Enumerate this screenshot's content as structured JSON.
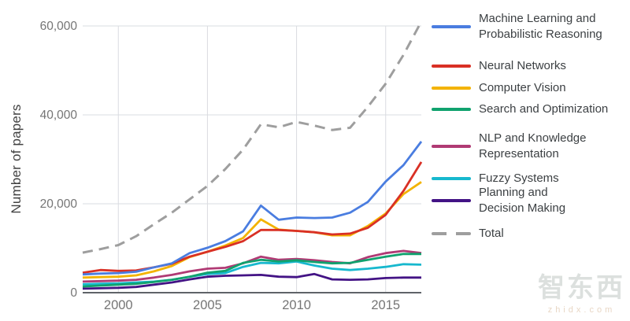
{
  "watermark": {
    "title": "智东西",
    "subtitle": "zhidx.com"
  },
  "chart_data": {
    "type": "line",
    "title": "",
    "xlabel": "",
    "ylabel": "Number of papers",
    "xlim": [
      1998,
      2017
    ],
    "ylim": [
      0,
      60000
    ],
    "grid": true,
    "legend_position": "right",
    "x": [
      1998,
      1999,
      2000,
      2001,
      2002,
      2003,
      2004,
      2005,
      2006,
      2007,
      2008,
      2009,
      2010,
      2011,
      2012,
      2013,
      2014,
      2015,
      2016,
      2017
    ],
    "x_ticks": [
      {
        "value": 2000,
        "label": "2000"
      },
      {
        "value": 2005,
        "label": "2005"
      },
      {
        "value": 2010,
        "label": "2010"
      },
      {
        "value": 2015,
        "label": "2015"
      }
    ],
    "y_ticks": [
      {
        "value": 0,
        "label": "0"
      },
      {
        "value": 20000,
        "label": "20,000"
      },
      {
        "value": 40000,
        "label": "40,000"
      },
      {
        "value": 60000,
        "label": "60,000"
      }
    ],
    "palette": {
      "grid_color": "#dadce0",
      "axis_line_color": "#5f6368",
      "tick_label_color": "#757575",
      "axis_title_color": "#424242",
      "legend_text_color": "#3c4043"
    },
    "series": [
      {
        "name": "Machine Learning and Probabilistic Reasoning",
        "label_lines": [
          "Machine Learning and",
          "Probabilistic Reasoning"
        ],
        "color": "#4a7de0",
        "style": "solid",
        "values": [
          4100,
          4300,
          4400,
          4700,
          5700,
          6600,
          8900,
          10100,
          11600,
          13800,
          19600,
          16400,
          16900,
          16800,
          16900,
          18000,
          20400,
          25000,
          28700,
          34000
        ]
      },
      {
        "name": "Neural Networks",
        "label_lines": [
          "Neural Networks"
        ],
        "color": "#d93025",
        "style": "solid",
        "values": [
          4500,
          5100,
          4900,
          5000,
          5700,
          6500,
          8100,
          9200,
          10300,
          11600,
          14100,
          14100,
          13900,
          13600,
          13100,
          13300,
          14600,
          17500,
          22900,
          29400
        ]
      },
      {
        "name": "Computer Vision",
        "label_lines": [
          "Computer Vision"
        ],
        "color": "#f3b300",
        "style": "solid",
        "values": [
          3400,
          3500,
          3600,
          3900,
          4800,
          6000,
          8000,
          9200,
          10600,
          12300,
          16500,
          14200,
          13900,
          13600,
          12900,
          12900,
          15000,
          17800,
          22200,
          24900
        ]
      },
      {
        "name": "Search and Optimization",
        "label_lines": [
          "Search and Optimization"
        ],
        "color": "#10a26e",
        "style": "solid",
        "values": [
          1400,
          1600,
          1800,
          2000,
          2400,
          2900,
          3600,
          4500,
          4900,
          6700,
          7400,
          7000,
          7300,
          6900,
          6600,
          6700,
          7400,
          8100,
          8700,
          8700
        ]
      },
      {
        "name": "NLP and Knowledge Representation",
        "label_lines": [
          "NLP and Knowledge",
          "Representation"
        ],
        "color": "#b03a74",
        "style": "solid",
        "values": [
          2500,
          2600,
          2700,
          2900,
          3400,
          4000,
          4800,
          5400,
          5600,
          6600,
          8100,
          7400,
          7600,
          7300,
          6900,
          6600,
          8000,
          8900,
          9400,
          8900
        ]
      },
      {
        "name": "Fuzzy Systems",
        "label_lines": [
          "Fuzzy Systems"
        ],
        "color": "#17b8ce",
        "style": "solid",
        "values": [
          1900,
          2000,
          2100,
          2300,
          2500,
          2900,
          3600,
          4200,
          4400,
          5800,
          6700,
          6600,
          7000,
          6100,
          5400,
          5100,
          5400,
          5800,
          6400,
          6300
        ]
      },
      {
        "name": "Planning and Decision Making",
        "label_lines": [
          "Planning and",
          "Decision Making"
        ],
        "color": "#431385",
        "style": "solid",
        "values": [
          900,
          1000,
          1100,
          1300,
          1800,
          2300,
          3000,
          3600,
          3800,
          3900,
          4000,
          3600,
          3500,
          4200,
          3000,
          2900,
          3000,
          3300,
          3400,
          3400
        ]
      },
      {
        "name": "Total",
        "label_lines": [
          "Total"
        ],
        "color": "#9e9e9e",
        "style": "dashed",
        "values": [
          9000,
          9800,
          10700,
          12700,
          15400,
          18000,
          21000,
          24000,
          27800,
          32200,
          37900,
          37200,
          38400,
          37600,
          36600,
          37100,
          41800,
          47000,
          53500,
          61000
        ]
      }
    ]
  }
}
